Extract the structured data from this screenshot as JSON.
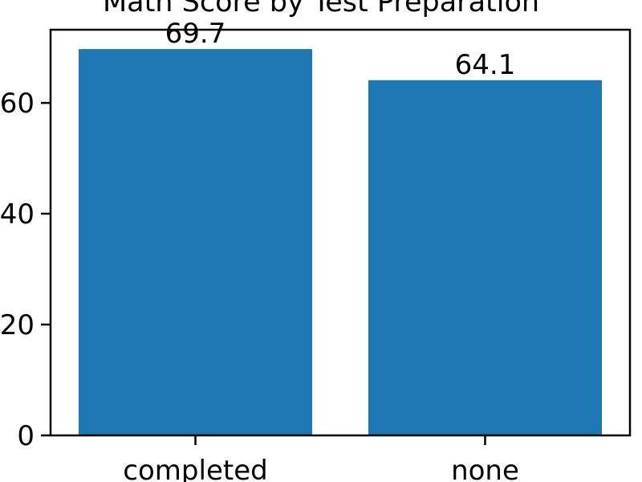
{
  "chart_data": {
    "type": "bar",
    "title": "Math Score by Test Preparation",
    "xlabel": "",
    "ylabel": "",
    "categories": [
      "completed",
      "none"
    ],
    "values": [
      69.7,
      64.1
    ],
    "data_labels": [
      "69.7",
      "64.1"
    ],
    "yticks": [
      0,
      20,
      40,
      60
    ],
    "ytick_labels": [
      "0",
      "20",
      "40",
      "60"
    ],
    "ylim": [
      0,
      73.2
    ],
    "grid": false,
    "bar_color": "#1f77b4"
  }
}
